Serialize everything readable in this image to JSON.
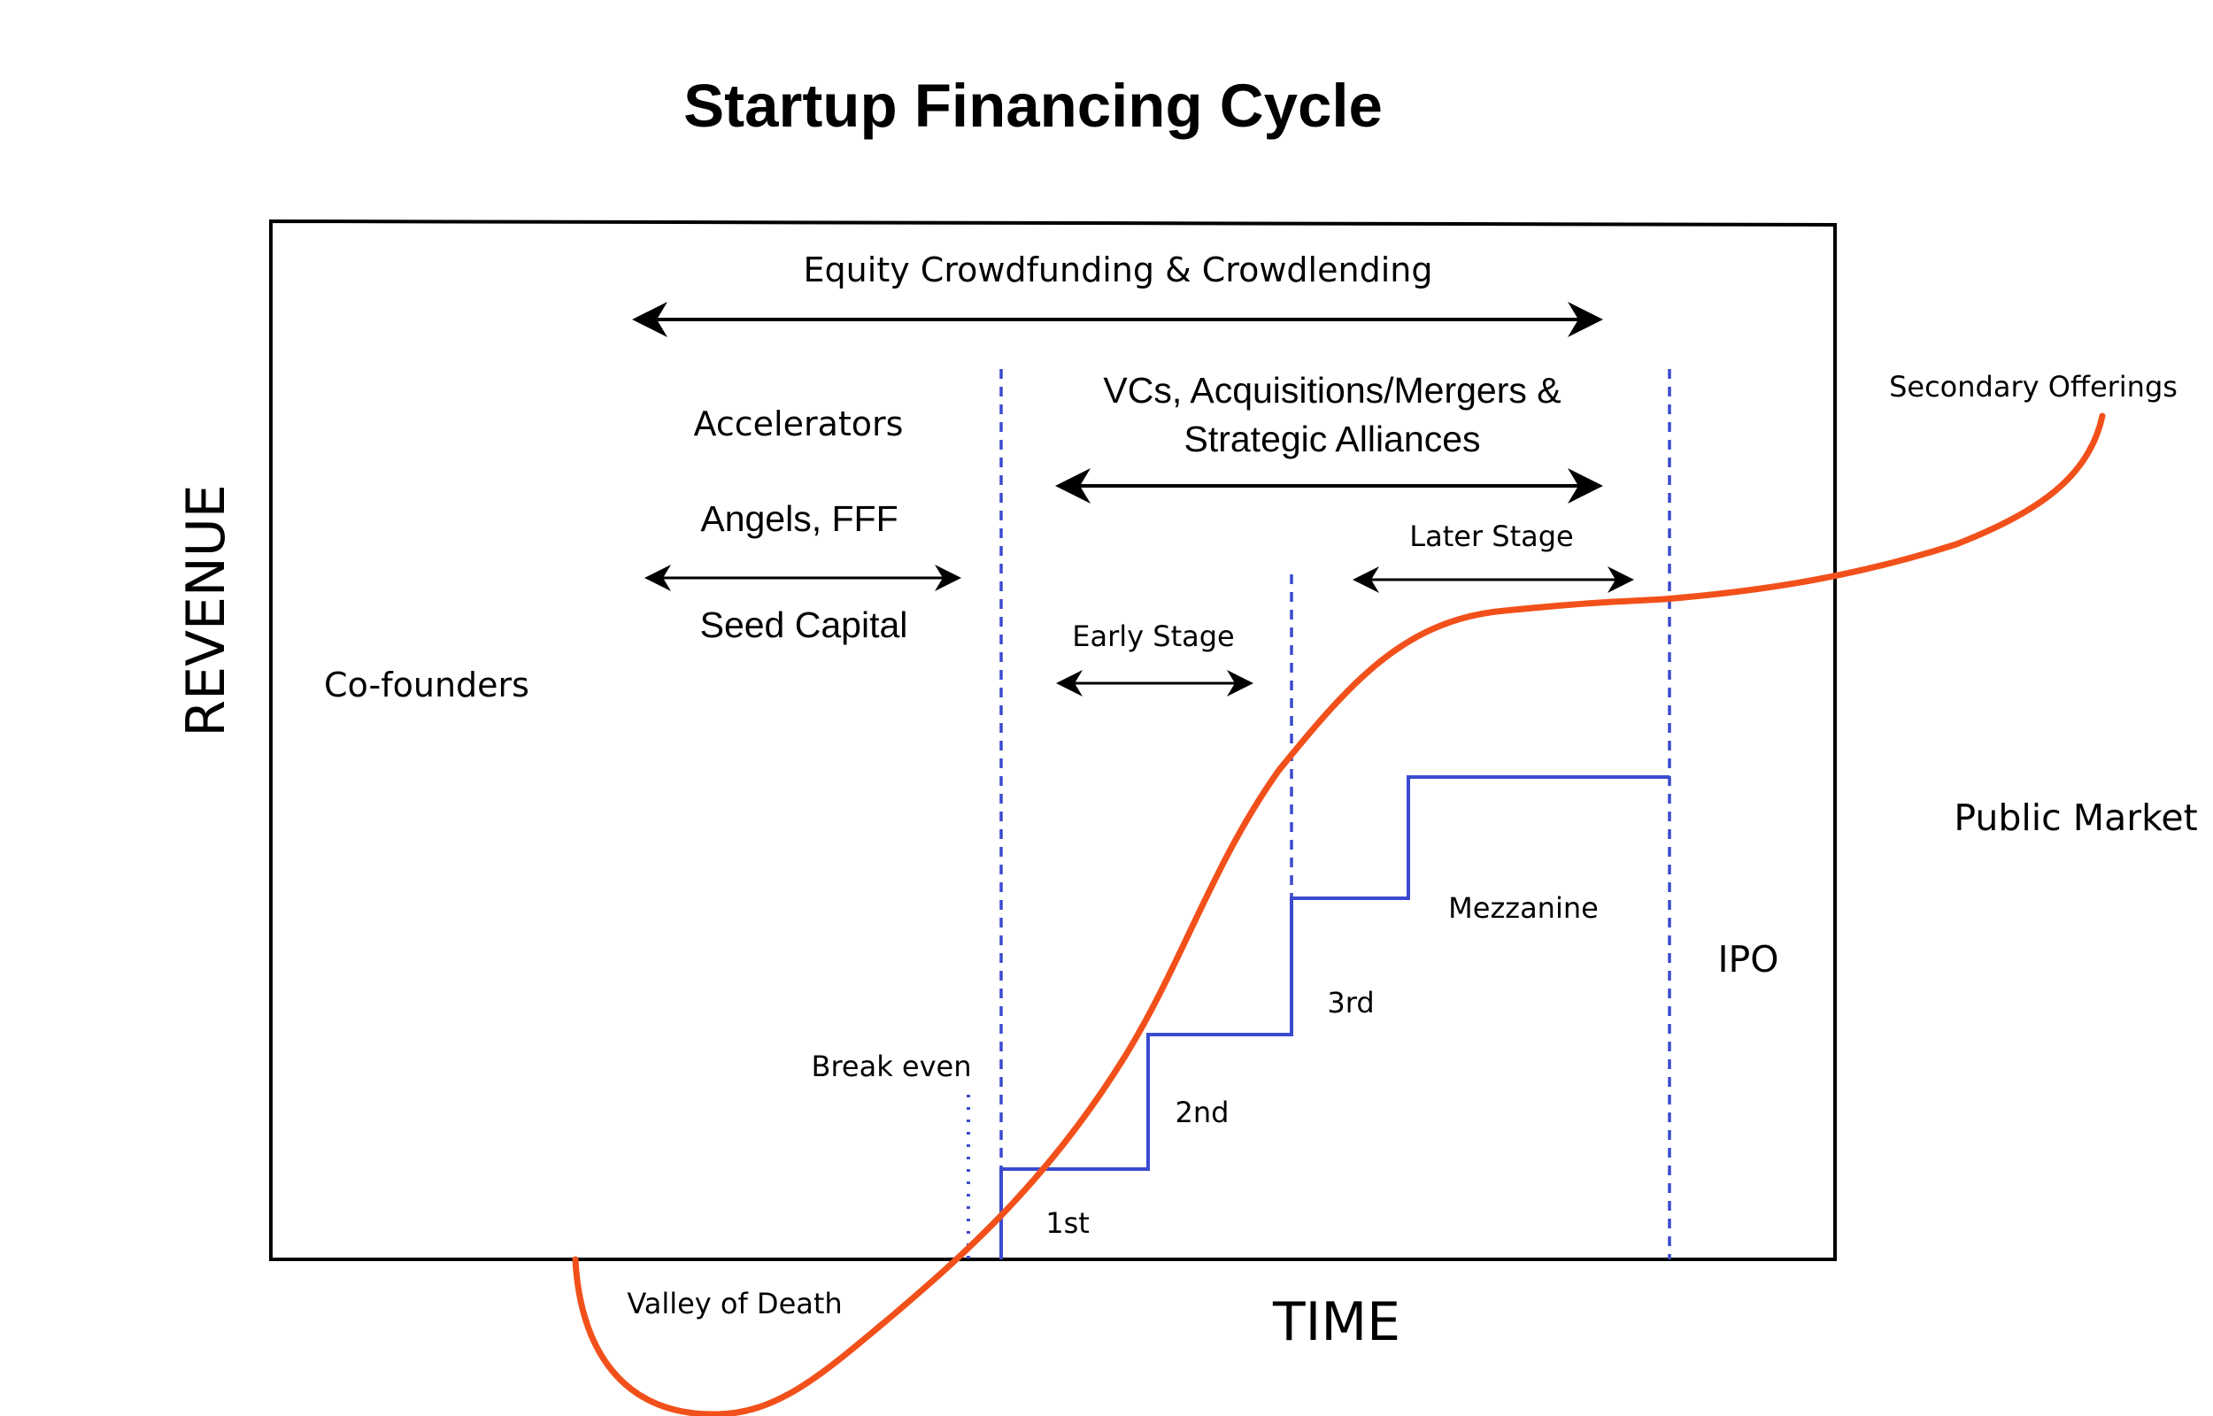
{
  "title": "Startup Financing Cycle",
  "axes": {
    "x_label": "TIME",
    "y_label": "REVENUE"
  },
  "labels": {
    "equity_crowdfunding": "Equity Crowdfunding & Crowdlending",
    "vcs_line1": "VCs, Acquisitions/Mergers &",
    "vcs_line2": "Strategic Alliances",
    "accelerators": "Accelerators",
    "angels": "Angels, FFF",
    "seed_capital": "Seed Capital",
    "co_founders": "Co-founders",
    "early_stage": "Early Stage",
    "later_stage": "Later Stage",
    "secondary_offerings": "Secondary Offerings",
    "public_market": "Public Market",
    "mezzanine": "Mezzanine",
    "ipo": "IPO",
    "third": "3rd",
    "second": "2nd",
    "first": "1st",
    "break_even": "Break even",
    "valley_of_death": "Valley of Death"
  },
  "colors": {
    "revenue_curve": "#f2501a",
    "funding_steps": "#3a4bcf",
    "dividers": "#3a4bcf",
    "frame": "#000000",
    "arrows": "#000000"
  }
}
